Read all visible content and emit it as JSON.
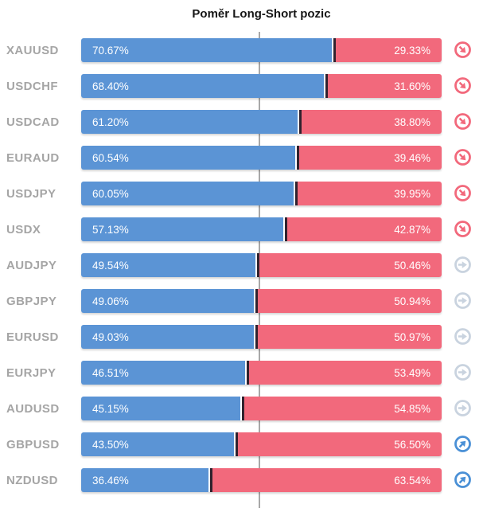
{
  "title": "Poměr Long-Short pozic",
  "colors": {
    "long": "#5b94d5",
    "short": "#f2697c",
    "divider": "#30222e",
    "centerline": "#a8a8a8",
    "label": "#a5a5a5",
    "icon_down": "#f2697c",
    "icon_neutral": "#c9d3df",
    "icon_up": "#4a90d6"
  },
  "chart_data": {
    "type": "bar",
    "orientation": "horizontal-stacked",
    "title": "Poměr Long-Short pozic",
    "series": [
      {
        "name": "Long",
        "color": "#5b94d5"
      },
      {
        "name": "Short",
        "color": "#f2697c"
      }
    ],
    "xlim": [
      0,
      100
    ],
    "center_marker": 50,
    "grid": "center-line-only",
    "rows": [
      {
        "pair": "XAUUSD",
        "long": 70.67,
        "short": 29.33,
        "long_label": "70.67%",
        "short_label": "29.33%",
        "trend": "down"
      },
      {
        "pair": "USDCHF",
        "long": 68.4,
        "short": 31.6,
        "long_label": "68.40%",
        "short_label": "31.60%",
        "trend": "down"
      },
      {
        "pair": "USDCAD",
        "long": 61.2,
        "short": 38.8,
        "long_label": "61.20%",
        "short_label": "38.80%",
        "trend": "down"
      },
      {
        "pair": "EURAUD",
        "long": 60.54,
        "short": 39.46,
        "long_label": "60.54%",
        "short_label": "39.46%",
        "trend": "down"
      },
      {
        "pair": "USDJPY",
        "long": 60.05,
        "short": 39.95,
        "long_label": "60.05%",
        "short_label": "39.95%",
        "trend": "down"
      },
      {
        "pair": "USDX",
        "long": 57.13,
        "short": 42.87,
        "long_label": "57.13%",
        "short_label": "42.87%",
        "trend": "down"
      },
      {
        "pair": "AUDJPY",
        "long": 49.54,
        "short": 50.46,
        "long_label": "49.54%",
        "short_label": "50.46%",
        "trend": "neutral"
      },
      {
        "pair": "GBPJPY",
        "long": 49.06,
        "short": 50.94,
        "long_label": "49.06%",
        "short_label": "50.94%",
        "trend": "neutral"
      },
      {
        "pair": "EURUSD",
        "long": 49.03,
        "short": 50.97,
        "long_label": "49.03%",
        "short_label": "50.97%",
        "trend": "neutral"
      },
      {
        "pair": "EURJPY",
        "long": 46.51,
        "short": 53.49,
        "long_label": "46.51%",
        "short_label": "53.49%",
        "trend": "neutral"
      },
      {
        "pair": "AUDUSD",
        "long": 45.15,
        "short": 54.85,
        "long_label": "45.15%",
        "short_label": "54.85%",
        "trend": "neutral"
      },
      {
        "pair": "GBPUSD",
        "long": 43.5,
        "short": 56.5,
        "long_label": "43.50%",
        "short_label": "56.50%",
        "trend": "up"
      },
      {
        "pair": "NZDUSD",
        "long": 36.46,
        "short": 63.54,
        "long_label": "36.46%",
        "short_label": "63.54%",
        "trend": "up"
      }
    ]
  }
}
